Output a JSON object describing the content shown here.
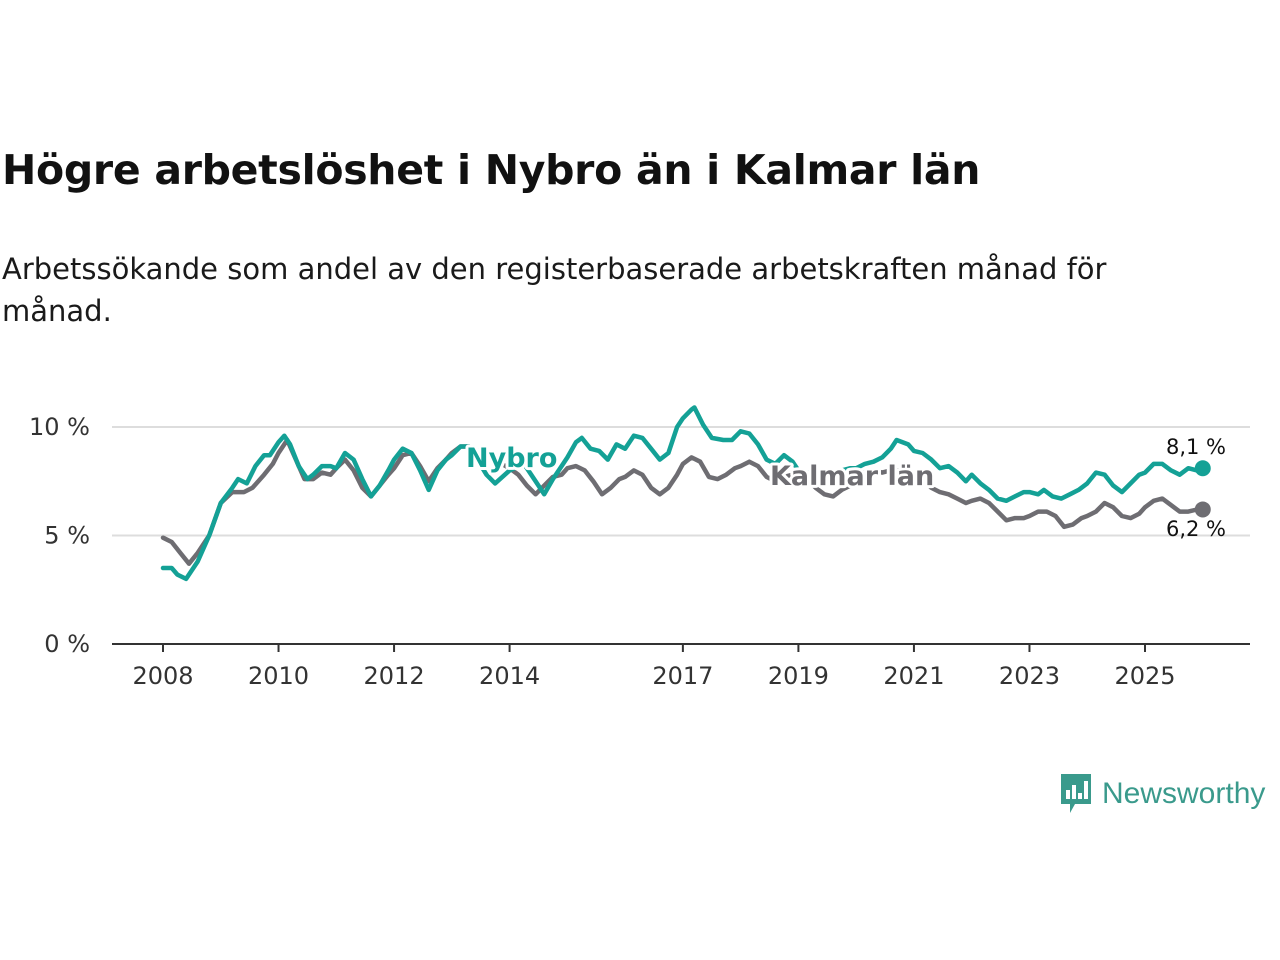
{
  "header": {
    "title": "Högre arbetslöshet i Nybro än i Kalmar län",
    "subtitle": "Arbetssökande som andel av den registerbaserade arbetskraften månad för månad."
  },
  "brand": {
    "name": "Newsworthy"
  },
  "colors": {
    "nybro": "#14a196",
    "kalmar": "#6e6d72",
    "grid": "#dddddd",
    "axis": "#333333",
    "brand": "#3a9a8c"
  },
  "chart_data": {
    "type": "line",
    "title": "Högre arbetslöshet i Nybro än i Kalmar län",
    "xlabel": "",
    "ylabel": "",
    "ylim": [
      0,
      11
    ],
    "xlim": [
      2007.75,
      2026.75
    ],
    "y_ticks": [
      {
        "value": 0,
        "label": "0 %"
      },
      {
        "value": 5,
        "label": "5 %"
      },
      {
        "value": 10,
        "label": "10 %"
      }
    ],
    "x_ticks": [
      {
        "value": 2008,
        "label": "2008"
      },
      {
        "value": 2010,
        "label": "2010"
      },
      {
        "value": 2012,
        "label": "2012"
      },
      {
        "value": 2014,
        "label": "2014"
      },
      {
        "value": 2017,
        "label": "2017"
      },
      {
        "value": 2019,
        "label": "2019"
      },
      {
        "value": 2021,
        "label": "2021"
      },
      {
        "value": 2023,
        "label": "2023"
      },
      {
        "value": 2025,
        "label": "2025"
      }
    ],
    "series": [
      {
        "name": "Nybro",
        "label": "Nybro",
        "end_label": "8,1 %",
        "points": [
          [
            2008.0,
            3.5
          ],
          [
            2008.15,
            3.5
          ],
          [
            2008.25,
            3.2
          ],
          [
            2008.4,
            3.0
          ],
          [
            2008.6,
            3.8
          ],
          [
            2008.8,
            5.0
          ],
          [
            2009.0,
            6.5
          ],
          [
            2009.2,
            7.2
          ],
          [
            2009.3,
            7.6
          ],
          [
            2009.45,
            7.4
          ],
          [
            2009.6,
            8.2
          ],
          [
            2009.75,
            8.7
          ],
          [
            2009.85,
            8.7
          ],
          [
            2010.0,
            9.3
          ],
          [
            2010.1,
            9.6
          ],
          [
            2010.2,
            9.2
          ],
          [
            2010.35,
            8.2
          ],
          [
            2010.5,
            7.6
          ],
          [
            2010.6,
            7.8
          ],
          [
            2010.75,
            8.2
          ],
          [
            2010.9,
            8.2
          ],
          [
            2011.0,
            8.1
          ],
          [
            2011.15,
            8.8
          ],
          [
            2011.3,
            8.5
          ],
          [
            2011.45,
            7.6
          ],
          [
            2011.6,
            6.8
          ],
          [
            2011.75,
            7.3
          ],
          [
            2011.9,
            8.0
          ],
          [
            2012.0,
            8.5
          ],
          [
            2012.15,
            9.0
          ],
          [
            2012.3,
            8.8
          ],
          [
            2012.45,
            8.0
          ],
          [
            2012.6,
            7.1
          ],
          [
            2012.75,
            8.0
          ],
          [
            2012.9,
            8.5
          ],
          [
            2013.0,
            8.7
          ],
          [
            2013.15,
            9.1
          ],
          [
            2013.3,
            9.1
          ],
          [
            2013.6,
            7.8
          ],
          [
            2013.75,
            7.4
          ],
          [
            2014.0,
            8.0
          ],
          [
            2014.25,
            8.3
          ],
          [
            2014.45,
            7.5
          ],
          [
            2014.6,
            6.9
          ],
          [
            2014.75,
            7.6
          ],
          [
            2014.9,
            8.2
          ],
          [
            2015.0,
            8.6
          ],
          [
            2015.15,
            9.3
          ],
          [
            2015.25,
            9.5
          ],
          [
            2015.4,
            9.0
          ],
          [
            2015.55,
            8.9
          ],
          [
            2015.7,
            8.5
          ],
          [
            2015.85,
            9.2
          ],
          [
            2016.0,
            9.0
          ],
          [
            2016.15,
            9.6
          ],
          [
            2016.3,
            9.5
          ],
          [
            2016.45,
            9.0
          ],
          [
            2016.6,
            8.5
          ],
          [
            2016.75,
            8.8
          ],
          [
            2016.9,
            10.0
          ],
          [
            2017.0,
            10.4
          ],
          [
            2017.15,
            10.8
          ],
          [
            2017.2,
            10.9
          ],
          [
            2017.35,
            10.1
          ],
          [
            2017.5,
            9.5
          ],
          [
            2017.7,
            9.4
          ],
          [
            2017.85,
            9.4
          ],
          [
            2018.0,
            9.8
          ],
          [
            2018.15,
            9.7
          ],
          [
            2018.3,
            9.2
          ],
          [
            2018.45,
            8.5
          ],
          [
            2018.6,
            8.3
          ],
          [
            2018.75,
            8.7
          ],
          [
            2018.9,
            8.4
          ],
          [
            2019.0,
            8.0
          ],
          [
            2019.15,
            7.9
          ],
          [
            2019.3,
            7.5
          ],
          [
            2019.45,
            7.3
          ],
          [
            2019.6,
            7.6
          ],
          [
            2019.75,
            8.0
          ],
          [
            2019.9,
            8.1
          ],
          [
            2020.0,
            8.1
          ],
          [
            2020.15,
            8.3
          ],
          [
            2020.3,
            8.4
          ],
          [
            2020.45,
            8.6
          ],
          [
            2020.6,
            9.0
          ],
          [
            2020.7,
            9.4
          ],
          [
            2020.9,
            9.2
          ],
          [
            2021.0,
            8.9
          ],
          [
            2021.15,
            8.8
          ],
          [
            2021.3,
            8.5
          ],
          [
            2021.45,
            8.1
          ],
          [
            2021.6,
            8.2
          ],
          [
            2021.75,
            7.9
          ],
          [
            2021.9,
            7.5
          ],
          [
            2022.0,
            7.8
          ],
          [
            2022.15,
            7.4
          ],
          [
            2022.3,
            7.1
          ],
          [
            2022.45,
            6.7
          ],
          [
            2022.6,
            6.6
          ],
          [
            2022.75,
            6.8
          ],
          [
            2022.9,
            7.0
          ],
          [
            2023.0,
            7.0
          ],
          [
            2023.15,
            6.9
          ],
          [
            2023.25,
            7.1
          ],
          [
            2023.4,
            6.8
          ],
          [
            2023.55,
            6.7
          ],
          [
            2023.7,
            6.9
          ],
          [
            2023.85,
            7.1
          ],
          [
            2024.0,
            7.4
          ],
          [
            2024.15,
            7.9
          ],
          [
            2024.3,
            7.8
          ],
          [
            2024.45,
            7.3
          ],
          [
            2024.6,
            7.0
          ],
          [
            2024.75,
            7.4
          ],
          [
            2024.9,
            7.8
          ],
          [
            2025.0,
            7.9
          ],
          [
            2025.15,
            8.3
          ],
          [
            2025.3,
            8.3
          ],
          [
            2025.45,
            8.0
          ],
          [
            2025.6,
            7.8
          ],
          [
            2025.75,
            8.1
          ],
          [
            2025.9,
            8.0
          ],
          [
            2026.0,
            8.1
          ]
        ]
      },
      {
        "name": "Kalmar län",
        "label": "Kalmar län",
        "end_label": "6,2 %",
        "points": [
          [
            2008.0,
            4.9
          ],
          [
            2008.15,
            4.7
          ],
          [
            2008.3,
            4.2
          ],
          [
            2008.45,
            3.7
          ],
          [
            2008.6,
            4.2
          ],
          [
            2008.8,
            5.0
          ],
          [
            2009.0,
            6.5
          ],
          [
            2009.2,
            7.0
          ],
          [
            2009.4,
            7.0
          ],
          [
            2009.55,
            7.2
          ],
          [
            2009.75,
            7.8
          ],
          [
            2009.9,
            8.3
          ],
          [
            2010.0,
            8.8
          ],
          [
            2010.15,
            9.4
          ],
          [
            2010.3,
            8.5
          ],
          [
            2010.45,
            7.6
          ],
          [
            2010.6,
            7.6
          ],
          [
            2010.75,
            7.9
          ],
          [
            2010.9,
            7.8
          ],
          [
            2011.0,
            8.1
          ],
          [
            2011.15,
            8.5
          ],
          [
            2011.3,
            8.0
          ],
          [
            2011.45,
            7.2
          ],
          [
            2011.6,
            6.8
          ],
          [
            2011.75,
            7.3
          ],
          [
            2011.9,
            7.8
          ],
          [
            2012.0,
            8.1
          ],
          [
            2012.15,
            8.7
          ],
          [
            2012.3,
            8.8
          ],
          [
            2012.45,
            8.2
          ],
          [
            2012.6,
            7.5
          ],
          [
            2012.75,
            8.1
          ],
          [
            2012.9,
            8.5
          ],
          [
            2013.0,
            8.8
          ],
          [
            2013.15,
            9.1
          ],
          [
            2013.3,
            9.1
          ],
          [
            2014.0,
            8.1
          ],
          [
            2014.15,
            7.8
          ],
          [
            2014.3,
            7.3
          ],
          [
            2014.45,
            6.9
          ],
          [
            2014.6,
            7.3
          ],
          [
            2014.75,
            7.7
          ],
          [
            2014.9,
            7.8
          ],
          [
            2015.0,
            8.1
          ],
          [
            2015.15,
            8.2
          ],
          [
            2015.3,
            8.0
          ],
          [
            2015.45,
            7.5
          ],
          [
            2015.6,
            6.9
          ],
          [
            2015.75,
            7.2
          ],
          [
            2015.9,
            7.6
          ],
          [
            2016.0,
            7.7
          ],
          [
            2016.15,
            8.0
          ],
          [
            2016.3,
            7.8
          ],
          [
            2016.45,
            7.2
          ],
          [
            2016.6,
            6.9
          ],
          [
            2016.75,
            7.2
          ],
          [
            2016.9,
            7.8
          ],
          [
            2017.0,
            8.3
          ],
          [
            2017.15,
            8.6
          ],
          [
            2017.3,
            8.4
          ],
          [
            2017.45,
            7.7
          ],
          [
            2017.6,
            7.6
          ],
          [
            2017.75,
            7.8
          ],
          [
            2017.9,
            8.1
          ],
          [
            2018.0,
            8.2
          ],
          [
            2018.15,
            8.4
          ],
          [
            2018.3,
            8.2
          ],
          [
            2018.45,
            7.7
          ],
          [
            2018.6,
            7.5
          ],
          [
            2018.75,
            7.7
          ],
          [
            2018.9,
            7.8
          ],
          [
            2019.0,
            7.8
          ],
          [
            2019.15,
            7.6
          ],
          [
            2019.3,
            7.2
          ],
          [
            2019.45,
            6.9
          ],
          [
            2019.6,
            6.8
          ],
          [
            2019.75,
            7.1
          ],
          [
            2019.9,
            7.3
          ],
          [
            2020.0,
            7.4
          ],
          [
            2020.15,
            7.9
          ],
          [
            2020.3,
            8.0
          ],
          [
            2020.45,
            7.9
          ],
          [
            2020.6,
            8.0
          ],
          [
            2020.75,
            8.0
          ],
          [
            2020.9,
            7.9
          ],
          [
            2021.0,
            7.8
          ],
          [
            2021.15,
            7.6
          ],
          [
            2021.3,
            7.2
          ],
          [
            2021.45,
            7.0
          ],
          [
            2021.6,
            6.9
          ],
          [
            2021.75,
            6.7
          ],
          [
            2021.9,
            6.5
          ],
          [
            2022.0,
            6.6
          ],
          [
            2022.15,
            6.7
          ],
          [
            2022.3,
            6.5
          ],
          [
            2022.45,
            6.1
          ],
          [
            2022.6,
            5.7
          ],
          [
            2022.75,
            5.8
          ],
          [
            2022.9,
            5.8
          ],
          [
            2023.0,
            5.9
          ],
          [
            2023.15,
            6.1
          ],
          [
            2023.3,
            6.1
          ],
          [
            2023.45,
            5.9
          ],
          [
            2023.6,
            5.4
          ],
          [
            2023.75,
            5.5
          ],
          [
            2023.9,
            5.8
          ],
          [
            2024.0,
            5.9
          ],
          [
            2024.15,
            6.1
          ],
          [
            2024.3,
            6.5
          ],
          [
            2024.45,
            6.3
          ],
          [
            2024.6,
            5.9
          ],
          [
            2024.75,
            5.8
          ],
          [
            2024.9,
            6.0
          ],
          [
            2025.0,
            6.3
          ],
          [
            2025.15,
            6.6
          ],
          [
            2025.3,
            6.7
          ],
          [
            2025.45,
            6.4
          ],
          [
            2025.6,
            6.1
          ],
          [
            2025.75,
            6.1
          ],
          [
            2025.9,
            6.2
          ],
          [
            2026.0,
            6.2
          ]
        ]
      }
    ]
  }
}
